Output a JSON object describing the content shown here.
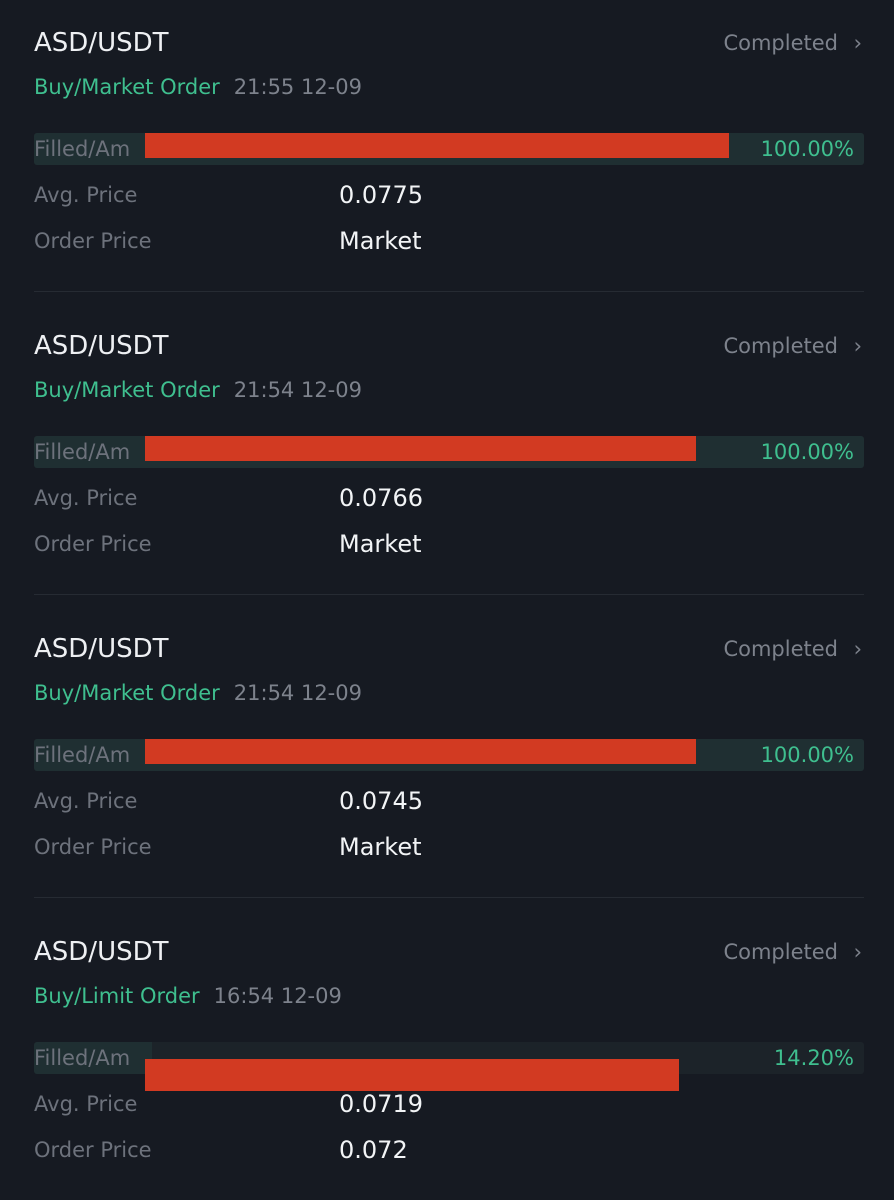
{
  "orders": [
    {
      "pair": "ASD/USDT",
      "status": "Completed",
      "side": "Buy/Market Order",
      "time": "21:55 12-09",
      "filled_label": "Filled/Am",
      "progress": 100,
      "progress_label": "100.00%",
      "avg_label": "Avg. Price",
      "avg_price": "0.0775",
      "price_label": "Order Price",
      "order_price": "Market"
    },
    {
      "pair": "ASD/USDT",
      "status": "Completed",
      "side": "Buy/Market Order",
      "time": "21:54 12-09",
      "filled_label": "Filled/Am",
      "progress": 100,
      "progress_label": "100.00%",
      "avg_label": "Avg. Price",
      "avg_price": "0.0766",
      "price_label": "Order Price",
      "order_price": "Market"
    },
    {
      "pair": "ASD/USDT",
      "status": "Completed",
      "side": "Buy/Market Order",
      "time": "21:54 12-09",
      "filled_label": "Filled/Am",
      "progress": 100,
      "progress_label": "100.00%",
      "avg_label": "Avg. Price",
      "avg_price": "0.0745",
      "price_label": "Order Price",
      "order_price": "Market"
    },
    {
      "pair": "ASD/USDT",
      "status": "Completed",
      "side": "Buy/Limit Order",
      "time": "16:54 12-09",
      "filled_label": "Filled/Am",
      "progress": 14.2,
      "progress_label": "14.20%",
      "avg_label": "Avg. Price",
      "avg_price": "0.0719",
      "price_label": "Order Price",
      "order_price": "0.072"
    }
  ]
}
